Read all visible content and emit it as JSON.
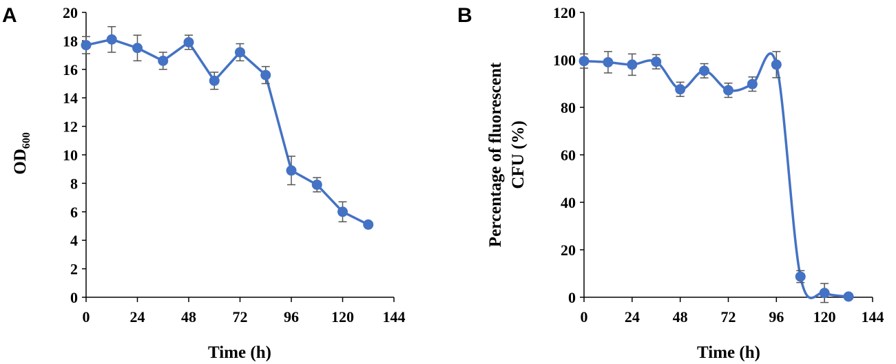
{
  "chart_data": [
    {
      "panel": "A",
      "type": "line",
      "xlabel": "Time (h)",
      "ylabel_main": "OD",
      "ylabel_sub": "600",
      "xticks": [
        "0",
        "24",
        "48",
        "72",
        "96",
        "120",
        "144"
      ],
      "yticks": [
        "0",
        "2",
        "4",
        "6",
        "8",
        "10",
        "12",
        "14",
        "16",
        "18",
        "20"
      ],
      "xlim": [
        0,
        144
      ],
      "ylim": [
        0,
        20
      ],
      "smooth": false,
      "color": "#4472C4",
      "series": [
        {
          "name": "OD600",
          "x": [
            0,
            12,
            24,
            36,
            48,
            60,
            72,
            84,
            96,
            108,
            120,
            132
          ],
          "y": [
            17.7,
            18.1,
            17.5,
            16.6,
            17.9,
            15.2,
            17.2,
            15.6,
            8.9,
            7.9,
            6.0,
            5.1
          ],
          "err": [
            0.6,
            0.9,
            0.9,
            0.6,
            0.5,
            0.6,
            0.6,
            0.6,
            1.0,
            0.5,
            0.7,
            0.0
          ]
        }
      ]
    },
    {
      "panel": "B",
      "type": "line",
      "xlabel": "Time (h)",
      "ylabel_line1": "Percentage of fluorescent",
      "ylabel_line2": "CFU (%)",
      "xticks": [
        "0",
        "24",
        "48",
        "72",
        "96",
        "120",
        "144"
      ],
      "yticks": [
        "0",
        "20",
        "40",
        "60",
        "80",
        "100",
        "120"
      ],
      "xlim": [
        0,
        144
      ],
      "ylim": [
        0,
        120
      ],
      "smooth": true,
      "color": "#4472C4",
      "series": [
        {
          "name": "Fluorescent CFU %",
          "x": [
            0,
            12,
            24,
            36,
            48,
            60,
            72,
            84,
            96,
            108,
            120,
            132
          ],
          "y": [
            99.5,
            99.0,
            98.0,
            99.2,
            87.6,
            95.4,
            87.2,
            89.8,
            98.0,
            8.7,
            1.8,
            0.3
          ],
          "err": [
            3.0,
            4.5,
            4.5,
            3.0,
            3.0,
            3.0,
            3.0,
            3.0,
            5.5,
            2.5,
            4.0,
            0.0
          ]
        }
      ]
    }
  ]
}
